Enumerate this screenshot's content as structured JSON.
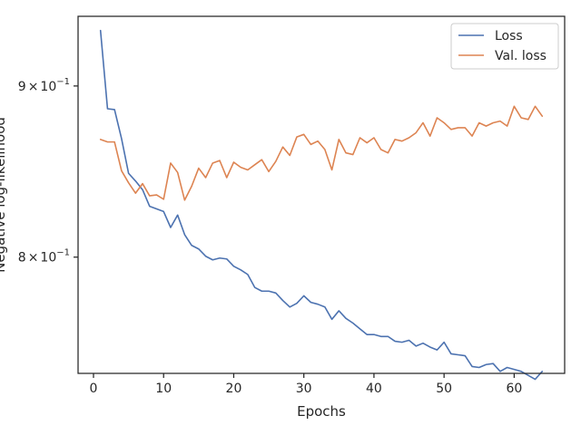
{
  "chart_data": {
    "type": "line",
    "xlabel": "Epochs",
    "ylabel": "Negative log-likelihood",
    "y_scale": "log",
    "xlim": [
      -2.2,
      67.2
    ],
    "ylim": [
      0.7385,
      0.9442
    ],
    "x_ticks": [
      {
        "value": 0,
        "label": "0"
      },
      {
        "value": 10,
        "label": "10"
      },
      {
        "value": 20,
        "label": "20"
      },
      {
        "value": 30,
        "label": "30"
      },
      {
        "value": 40,
        "label": "40"
      },
      {
        "value": 50,
        "label": "50"
      },
      {
        "value": 60,
        "label": "60"
      }
    ],
    "y_ticks": [
      {
        "value": 0.8,
        "base": "8",
        "times": "×",
        "exp_base": "10",
        "exp": "−1"
      },
      {
        "value": 0.9,
        "base": "9",
        "times": "×",
        "exp_base": "10",
        "exp": "−1"
      }
    ],
    "legend": {
      "position": "top-right"
    },
    "series": [
      {
        "name": "Loss",
        "color": "#4c72b0",
        "x": [
          1,
          2,
          3,
          4,
          5,
          6,
          7,
          8,
          9,
          10,
          11,
          12,
          13,
          14,
          15,
          16,
          17,
          18,
          19,
          20,
          21,
          22,
          23,
          24,
          25,
          26,
          27,
          28,
          29,
          30,
          31,
          32,
          33,
          34,
          35,
          36,
          37,
          38,
          39,
          40,
          41,
          42,
          43,
          44,
          45,
          46,
          47,
          48,
          49,
          50,
          51,
          52,
          53,
          54,
          55,
          56,
          57,
          58,
          59,
          60,
          61,
          62,
          63,
          64
        ],
        "values": [
          0.935,
          0.886,
          0.8855,
          0.868,
          0.8475,
          0.843,
          0.838,
          0.8285,
          0.827,
          0.8255,
          0.8165,
          0.8235,
          0.8125,
          0.8065,
          0.8045,
          0.8005,
          0.7985,
          0.7995,
          0.799,
          0.795,
          0.793,
          0.7905,
          0.7835,
          0.7815,
          0.7815,
          0.7805,
          0.7765,
          0.773,
          0.775,
          0.779,
          0.7755,
          0.7745,
          0.773,
          0.7665,
          0.771,
          0.767,
          0.7645,
          0.7615,
          0.7585,
          0.7585,
          0.7575,
          0.7575,
          0.755,
          0.7545,
          0.7555,
          0.7525,
          0.754,
          0.752,
          0.7505,
          0.7545,
          0.7485,
          0.748,
          0.7475,
          0.742,
          0.7415,
          0.743,
          0.7435,
          0.7395,
          0.7415,
          0.7405,
          0.7395,
          0.7375,
          0.7355,
          0.7395
        ]
      },
      {
        "name": "Val. loss",
        "color": "#dd8452",
        "x": [
          1,
          2,
          3,
          4,
          5,
          6,
          7,
          8,
          9,
          10,
          11,
          12,
          13,
          14,
          15,
          16,
          17,
          18,
          19,
          20,
          21,
          22,
          23,
          24,
          25,
          26,
          27,
          28,
          29,
          30,
          31,
          32,
          33,
          34,
          35,
          36,
          37,
          38,
          39,
          40,
          41,
          42,
          43,
          44,
          45,
          46,
          47,
          48,
          49,
          50,
          51,
          52,
          53,
          54,
          55,
          56,
          57,
          58,
          59,
          60,
          61,
          62,
          63,
          64
        ],
        "values": [
          0.8675,
          0.866,
          0.866,
          0.849,
          0.842,
          0.836,
          0.8415,
          0.8345,
          0.835,
          0.8325,
          0.8535,
          0.848,
          0.832,
          0.84,
          0.8505,
          0.845,
          0.8535,
          0.855,
          0.845,
          0.854,
          0.851,
          0.8495,
          0.8525,
          0.8555,
          0.8485,
          0.8545,
          0.863,
          0.858,
          0.869,
          0.8705,
          0.8645,
          0.8665,
          0.8615,
          0.8495,
          0.8675,
          0.8595,
          0.8585,
          0.8685,
          0.8655,
          0.8685,
          0.8615,
          0.8595,
          0.8675,
          0.8665,
          0.8685,
          0.8715,
          0.8775,
          0.8695,
          0.8805,
          0.8775,
          0.8735,
          0.8745,
          0.8745,
          0.8695,
          0.8775,
          0.8755,
          0.8775,
          0.8785,
          0.8755,
          0.8875,
          0.8805,
          0.8795,
          0.8875,
          0.8815
        ]
      }
    ]
  }
}
